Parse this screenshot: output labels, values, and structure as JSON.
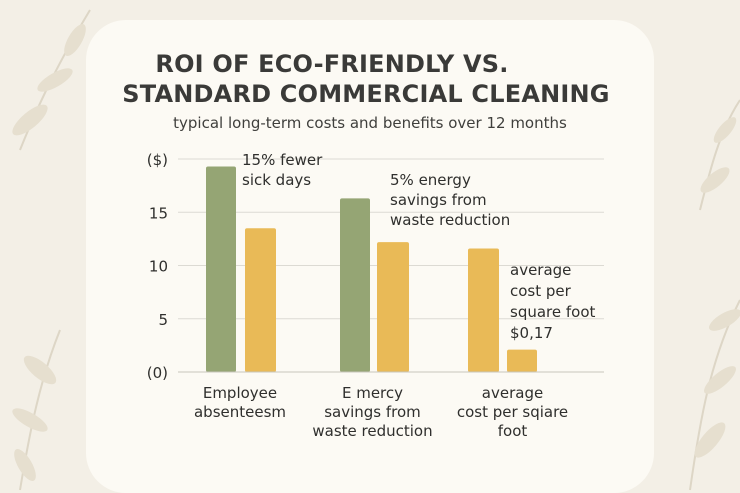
{
  "title_line1": "ROI OF ECO-FRIENDLY VS.",
  "title_line2": "STANDARD COMMERCIAL CLEANING",
  "subtitle": "typical long-term costs and benefits over 12 months",
  "colors": {
    "eco": "#95a574",
    "standard": "#e9ba57",
    "grid": "#dcdad3",
    "text": "#2f2f2d"
  },
  "chart_data": {
    "type": "bar",
    "title": "ROI OF ECO-FRIENDLY VS. STANDARD COMMERCIAL CLEANING",
    "subtitle": "typical long-term costs and benefits over 12 months",
    "ylabel": "($)",
    "ylim": [
      0,
      20
    ],
    "yticks": [
      {
        "value": 0,
        "label": "(0)"
      },
      {
        "value": 5,
        "label": "5"
      },
      {
        "value": 10,
        "label": "10"
      },
      {
        "value": 15,
        "label": "15"
      },
      {
        "value": 20,
        "label": "($)"
      }
    ],
    "grid": true,
    "categories": [
      [
        "Employee",
        "absenteesm"
      ],
      [
        "E mercy",
        "savings from",
        "waste reduction"
      ],
      [
        "average",
        "cost per sqiare",
        "foot"
      ]
    ],
    "series": [
      {
        "values": [
          19.3,
          null,
          null
        ]
      },
      {
        "values": [
          13.5,
          null,
          null
        ]
      },
      {
        "values": [
          null,
          16.3,
          null
        ]
      },
      {
        "values": [
          null,
          12.2,
          null
        ]
      },
      {
        "values": [
          null,
          null,
          11.6
        ]
      },
      {
        "values": [
          null,
          null,
          2.1
        ]
      }
    ],
    "annotations": [
      [
        "15% fewer",
        "sick days"
      ],
      [
        "5% energy",
        "savings from",
        "waste reduction"
      ],
      [
        "average",
        "cost per",
        "square foot",
        "$0,17"
      ]
    ]
  }
}
